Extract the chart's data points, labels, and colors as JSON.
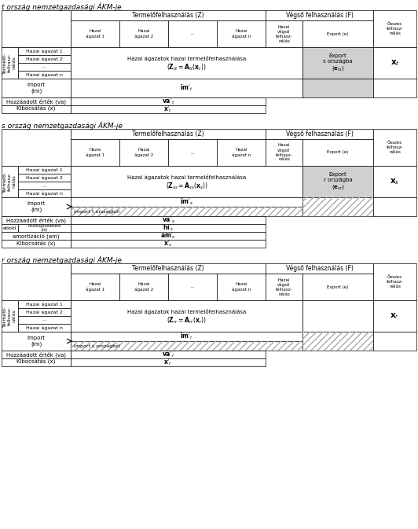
{
  "title_t": "t ország nemzetgazdasági ÁKM-je",
  "title_s": "s ország nemzetgazdasági ÁKM-je",
  "title_r": "r ország nemzetgazdasági ÁKM-je",
  "col_header_Z": "Termelőfelhasználás (Z)",
  "col_header_F": "Végső felhasználás (F)",
  "col_h1": "Hazai\nágazat 1",
  "col_h2": "Hazai\nágazat 2",
  "col_h3": "...",
  "col_h4": "Hazai\nágazat n",
  "col_h5": "Hazai\nvégső\nfelhasz-\nnálás",
  "col_h6": "Export (e)",
  "col_h7": "Összes\nfelhasz-\nnálás",
  "row_tf": "Termelő-\nfelhasz-\nnálás",
  "row_h1": "Hazai ágazat 1",
  "row_h2": "Hazai ágazat 2",
  "row_h3": "...",
  "row_h4": "Hazai ágazat n",
  "row_import": "Import\n(im)",
  "row_va": "Hozzáadott érték (va)",
  "row_hi_label": "munkajövedelem\n(hi)",
  "row_am": "amortizáció (am)",
  "row_kiboc": "Kibocsátás (x)",
  "row_ebbol": "ebből",
  "cell_hazai": "Hazai ágazatok hazai termelőfelhasználása",
  "bg_white": "#ffffff",
  "bg_gray": "#d0d0d0",
  "line_color": "#000000",
  "font_size_title": 6.5,
  "font_size_header": 5.5,
  "font_size_cell": 5.0,
  "font_size_formula": 5.5,
  "lw": 0.5
}
